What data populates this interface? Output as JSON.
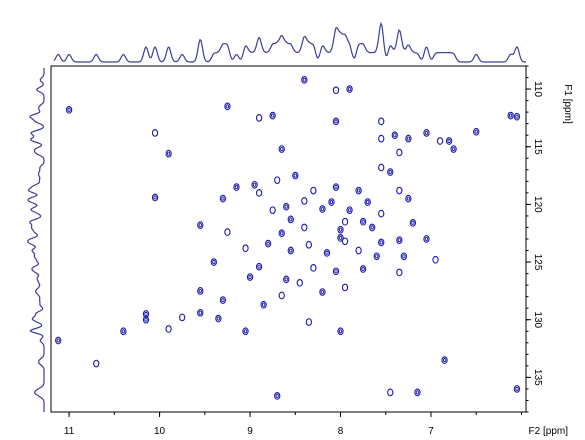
{
  "chart_data": {
    "type": "scatter",
    "title": "",
    "xlabel": "F2 [ppm]",
    "ylabel": "F1 [ppm]",
    "xlim": [
      11.2,
      5.95
    ],
    "ylim": [
      108,
      138
    ],
    "x_ticks": [
      "11",
      "10",
      "9",
      "8",
      "7"
    ],
    "x_tick_values": [
      11,
      10,
      9,
      8,
      7
    ],
    "y_ticks": [
      "110",
      "115",
      "120",
      "125",
      "130",
      "135"
    ],
    "y_tick_values": [
      110,
      115,
      120,
      125,
      130,
      135
    ],
    "grid": false,
    "colors": {
      "contour": "#1a1ab0",
      "projection": "#3d3d9a",
      "axis": "#000000"
    },
    "points": [
      [
        8.4,
        109.2
      ],
      [
        7.9,
        110.0
      ],
      [
        8.05,
        110.1
      ],
      [
        9.25,
        111.5
      ],
      [
        11.0,
        111.8
      ],
      [
        8.9,
        112.5
      ],
      [
        8.75,
        112.3
      ],
      [
        8.05,
        112.8
      ],
      [
        7.55,
        112.8
      ],
      [
        6.12,
        112.3
      ],
      [
        6.05,
        112.4
      ],
      [
        10.05,
        113.8
      ],
      [
        7.05,
        113.8
      ],
      [
        6.5,
        113.7
      ],
      [
        7.55,
        114.3
      ],
      [
        7.4,
        114.0
      ],
      [
        7.25,
        114.3
      ],
      [
        6.9,
        114.5
      ],
      [
        6.8,
        114.5
      ],
      [
        6.75,
        115.2
      ],
      [
        7.35,
        115.5
      ],
      [
        8.65,
        115.2
      ],
      [
        9.9,
        115.6
      ],
      [
        7.55,
        116.8
      ],
      [
        7.45,
        117.2
      ],
      [
        8.5,
        117.5
      ],
      [
        8.7,
        117.9
      ],
      [
        9.15,
        118.5
      ],
      [
        8.95,
        118.3
      ],
      [
        8.3,
        118.8
      ],
      [
        8.05,
        118.5
      ],
      [
        7.8,
        118.8
      ],
      [
        7.35,
        118.8
      ],
      [
        7.25,
        119.5
      ],
      [
        9.3,
        119.5
      ],
      [
        8.9,
        119.0
      ],
      [
        10.05,
        119.4
      ],
      [
        8.1,
        119.8
      ],
      [
        8.4,
        119.7
      ],
      [
        7.7,
        119.8
      ],
      [
        8.6,
        120.2
      ],
      [
        8.75,
        120.5
      ],
      [
        8.2,
        120.4
      ],
      [
        7.9,
        120.5
      ],
      [
        7.55,
        120.8
      ],
      [
        7.75,
        121.5
      ],
      [
        8.55,
        121.3
      ],
      [
        7.95,
        121.5
      ],
      [
        7.2,
        121.6
      ],
      [
        9.55,
        121.8
      ],
      [
        8.4,
        122.0
      ],
      [
        8.0,
        122.2
      ],
      [
        7.65,
        122.0
      ],
      [
        9.25,
        122.4
      ],
      [
        8.65,
        122.5
      ],
      [
        8.0,
        122.9
      ],
      [
        7.95,
        123.2
      ],
      [
        7.05,
        123.0
      ],
      [
        8.8,
        123.4
      ],
      [
        8.35,
        123.5
      ],
      [
        7.55,
        123.3
      ],
      [
        7.35,
        123.1
      ],
      [
        9.05,
        123.8
      ],
      [
        8.55,
        124.0
      ],
      [
        8.15,
        124.2
      ],
      [
        7.8,
        124.0
      ],
      [
        7.6,
        124.5
      ],
      [
        7.3,
        124.5
      ],
      [
        6.95,
        124.8
      ],
      [
        9.4,
        125.0
      ],
      [
        8.9,
        125.4
      ],
      [
        8.3,
        125.5
      ],
      [
        8.05,
        125.8
      ],
      [
        7.75,
        125.6
      ],
      [
        7.35,
        125.9
      ],
      [
        9.0,
        126.3
      ],
      [
        8.6,
        126.5
      ],
      [
        8.45,
        126.8
      ],
      [
        9.55,
        127.5
      ],
      [
        8.2,
        127.6
      ],
      [
        7.95,
        127.2
      ],
      [
        9.3,
        128.3
      ],
      [
        8.85,
        128.7
      ],
      [
        8.65,
        127.9
      ],
      [
        10.15,
        129.5
      ],
      [
        10.15,
        130.0
      ],
      [
        9.75,
        129.8
      ],
      [
        9.55,
        129.4
      ],
      [
        9.35,
        129.9
      ],
      [
        9.9,
        130.8
      ],
      [
        10.4,
        131.0
      ],
      [
        8.0,
        131.0
      ],
      [
        8.35,
        130.2
      ],
      [
        9.05,
        131.0
      ],
      [
        11.12,
        131.8
      ],
      [
        10.7,
        133.8
      ],
      [
        6.85,
        133.5
      ],
      [
        8.7,
        136.6
      ],
      [
        7.45,
        136.3
      ],
      [
        6.05,
        136.0
      ],
      [
        7.15,
        136.3
      ]
    ]
  }
}
